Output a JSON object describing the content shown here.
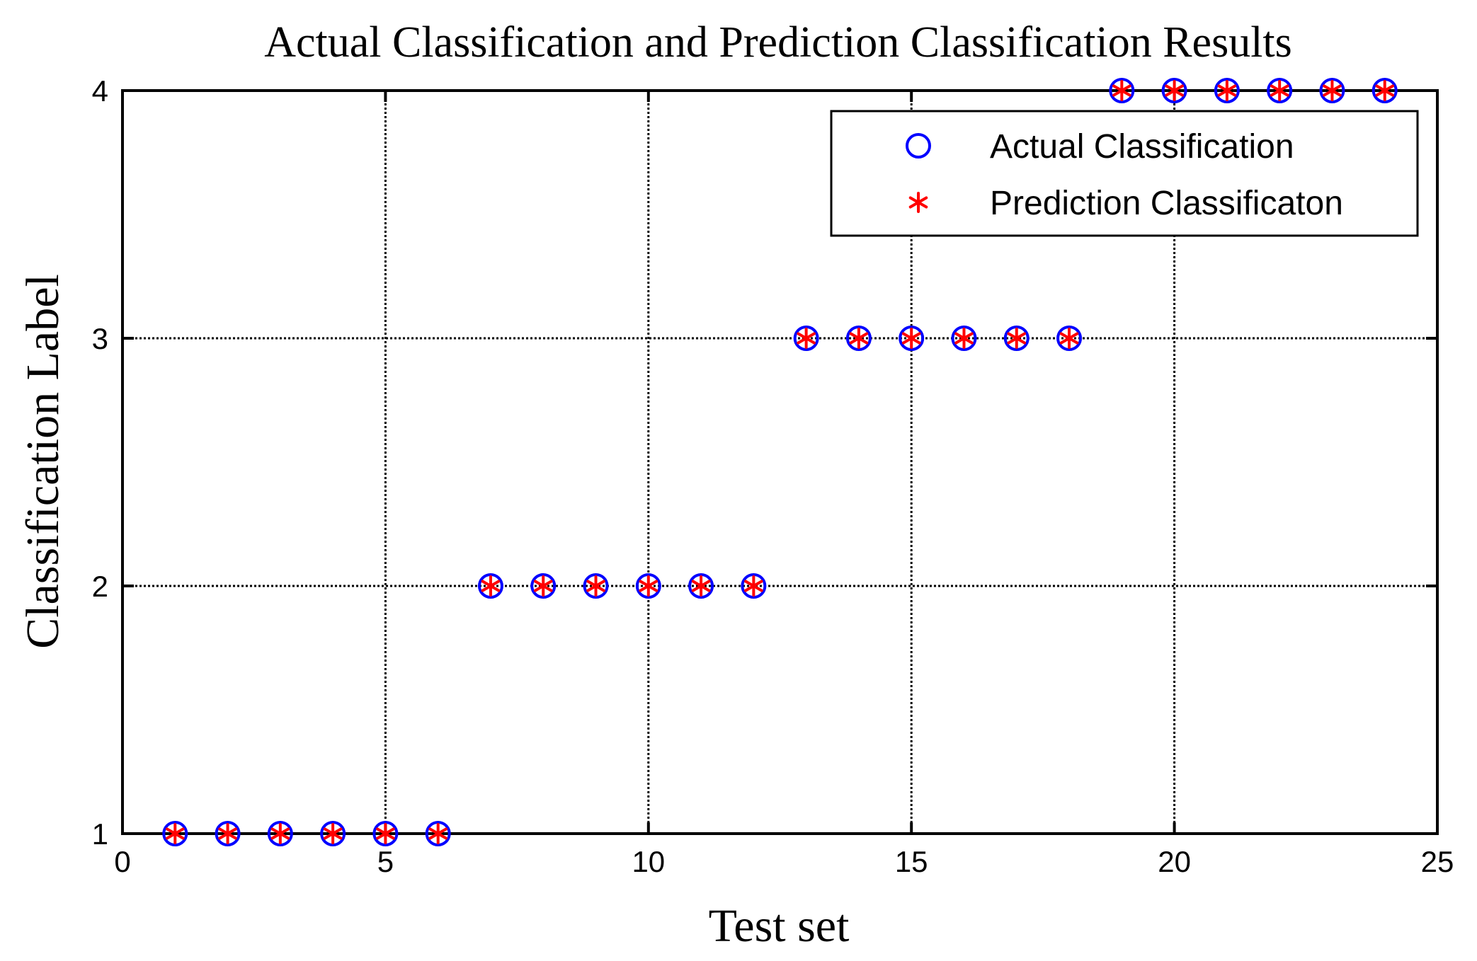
{
  "chart_data": {
    "type": "scatter",
    "title": "Actual Classification and Prediction Classification Results",
    "xlabel": "Test set",
    "ylabel": "Classification Label",
    "xlim": [
      0,
      25
    ],
    "ylim": [
      1,
      4
    ],
    "xticks": [
      0,
      5,
      10,
      15,
      20,
      25
    ],
    "yticks": [
      1,
      2,
      3,
      4
    ],
    "grid": true,
    "legend_position": "top-right",
    "x": [
      1,
      2,
      3,
      4,
      5,
      6,
      7,
      8,
      9,
      10,
      11,
      12,
      13,
      14,
      15,
      16,
      17,
      18,
      19,
      20,
      21,
      22,
      23,
      24
    ],
    "series": [
      {
        "name": "Actual Classification",
        "marker": "circle",
        "color": "#0000ff",
        "values": [
          1,
          1,
          1,
          1,
          1,
          1,
          2,
          2,
          2,
          2,
          2,
          2,
          3,
          3,
          3,
          3,
          3,
          3,
          4,
          4,
          4,
          4,
          4,
          4
        ]
      },
      {
        "name": "Prediction Classificaton",
        "marker": "asterisk",
        "color": "#ff0000",
        "values": [
          1,
          1,
          1,
          1,
          1,
          1,
          2,
          2,
          2,
          2,
          2,
          2,
          3,
          3,
          3,
          3,
          3,
          3,
          4,
          4,
          4,
          4,
          4,
          4
        ]
      }
    ]
  }
}
